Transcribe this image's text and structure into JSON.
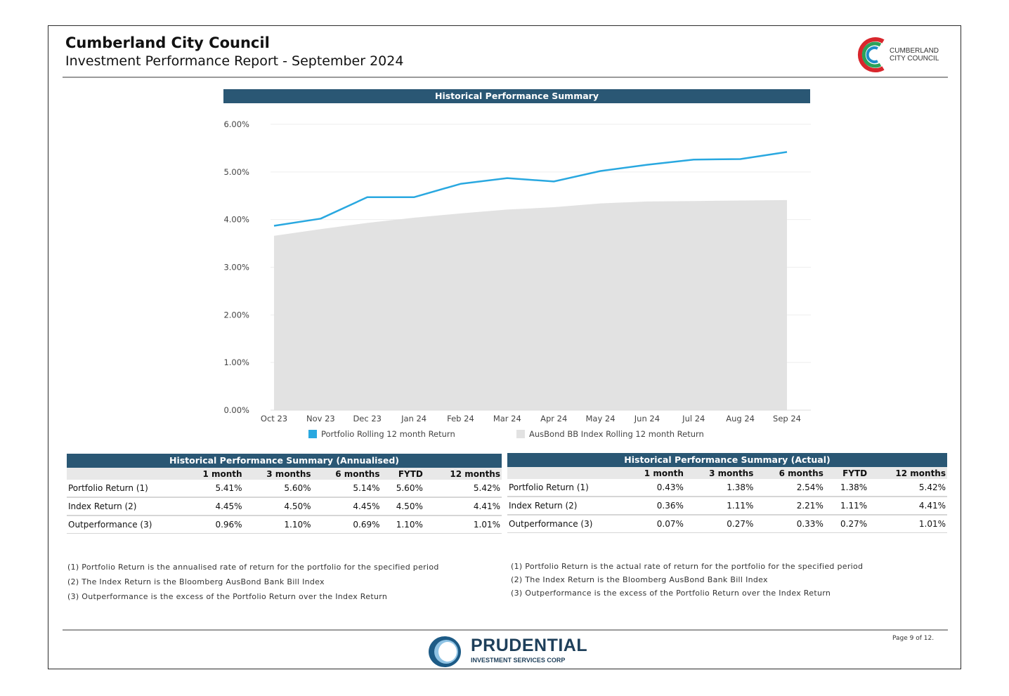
{
  "header": {
    "org": "Cumberland City Council",
    "report": "Investment Performance Report - September 2024",
    "logo_text": "CUMBERLAND\nCITY COUNCIL"
  },
  "chart_section_title": "Historical Performance Summary",
  "chart_data": {
    "type": "line",
    "title": "Historical Performance Summary",
    "categories": [
      "Oct 23",
      "Nov 23",
      "Dec 23",
      "Jan 24",
      "Feb 24",
      "Mar 24",
      "Apr 24",
      "May 24",
      "Jun 24",
      "Jul 24",
      "Aug 24",
      "Sep 24"
    ],
    "series": [
      {
        "name": "Portfolio Rolling 12 month Return",
        "kind": "line",
        "color": "#29a8e0",
        "values": [
          3.87,
          4.02,
          4.47,
          4.47,
          4.75,
          4.87,
          4.8,
          5.02,
          5.15,
          5.26,
          5.27,
          5.42
        ]
      },
      {
        "name": "AusBond BB Index Rolling 12 month Return",
        "kind": "area",
        "color": "#e2e2e2",
        "values": [
          3.66,
          3.8,
          3.93,
          4.04,
          4.13,
          4.21,
          4.26,
          4.34,
          4.38,
          4.39,
          4.4,
          4.41
        ]
      }
    ],
    "yticks": [
      "0.00%",
      "1.00%",
      "2.00%",
      "3.00%",
      "4.00%",
      "5.00%",
      "6.00%"
    ],
    "ylim": [
      0,
      6
    ],
    "grid": true,
    "legend": "bottom"
  },
  "table_annualised": {
    "title": "Historical Performance Summary (Annualised)",
    "columns": [
      "",
      "1 month",
      "3 months",
      "6 months",
      "FYTD",
      "12 months"
    ],
    "rows": [
      [
        "Portfolio Return (1)",
        "5.41%",
        "5.60%",
        "5.14%",
        "5.60%",
        "5.42%"
      ],
      [
        "Index Return (2)",
        "4.45%",
        "4.50%",
        "4.45%",
        "4.50%",
        "4.41%"
      ],
      [
        "Outperformance (3)",
        "0.96%",
        "1.10%",
        "0.69%",
        "1.10%",
        "1.01%"
      ]
    ]
  },
  "table_actual": {
    "title": "Historical Performance Summary (Actual)",
    "columns": [
      "",
      "1 month",
      "3 months",
      "6 months",
      "FYTD",
      "12 months"
    ],
    "rows": [
      [
        "Portfolio Return (1)",
        "0.43%",
        "1.38%",
        "2.54%",
        "1.38%",
        "5.42%"
      ],
      [
        "Index Return (2)",
        "0.36%",
        "1.11%",
        "2.21%",
        "1.11%",
        "4.41%"
      ],
      [
        "Outperformance (3)",
        "0.07%",
        "0.27%",
        "0.33%",
        "0.27%",
        "1.01%"
      ]
    ]
  },
  "notes_left": [
    "(1) Portfolio Return is the annualised rate of return for the portfolio for the specified period",
    "(2) The Index Return is the Bloomberg AusBond Bank Bill Index",
    "(3) Outperformance is the excess of the Portfolio Return over the Index Return"
  ],
  "notes_right": [
    "(1) Portfolio Return is the actual rate of return for the portfolio for the specified period",
    "(2) The Index Return is the Bloomberg AusBond Bank Bill Index",
    "(3) Outperformance is the excess of the Portfolio Return over the Index Return"
  ],
  "footer": {
    "brand": "PRUDENTIAL",
    "brand_sub": "INVESTMENT SERVICES CORP",
    "page": "Page 9 of 12."
  },
  "colors": {
    "section_bar": "#2a5774",
    "portfolio_line": "#29a8e0",
    "index_area": "#e2e2e2"
  }
}
